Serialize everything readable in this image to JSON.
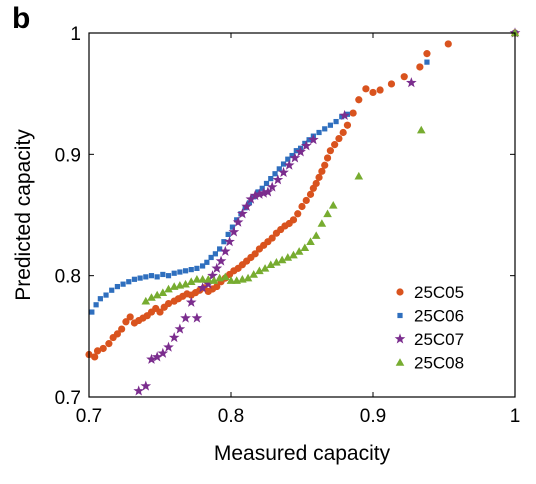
{
  "panel_label": "b",
  "chart_data": {
    "type": "scatter",
    "xlabel": "Measured capacity",
    "ylabel": "Predicted capacity",
    "xlim": [
      0.7,
      1.0
    ],
    "ylim": [
      0.7,
      1.0
    ],
    "x_ticks": [
      "0.7",
      "0.8",
      "0.9",
      "1"
    ],
    "y_ticks": [
      "0.7",
      "0.8",
      "0.9",
      "1"
    ],
    "grid": false,
    "legend_position": "bottom-right",
    "series": [
      {
        "name": "25C05",
        "color": "#d9531e",
        "marker": "circle",
        "points": [
          [
            0.7,
            0.735
          ],
          [
            0.704,
            0.733
          ],
          [
            0.706,
            0.738
          ],
          [
            0.71,
            0.74
          ],
          [
            0.714,
            0.744
          ],
          [
            0.717,
            0.749
          ],
          [
            0.72,
            0.752
          ],
          [
            0.723,
            0.756
          ],
          [
            0.726,
            0.762
          ],
          [
            0.729,
            0.766
          ],
          [
            0.732,
            0.761
          ],
          [
            0.735,
            0.763
          ],
          [
            0.738,
            0.765
          ],
          [
            0.741,
            0.767
          ],
          [
            0.744,
            0.77
          ],
          [
            0.747,
            0.773
          ],
          [
            0.75,
            0.77
          ],
          [
            0.753,
            0.774
          ],
          [
            0.756,
            0.777
          ],
          [
            0.76,
            0.779
          ],
          [
            0.763,
            0.781
          ],
          [
            0.766,
            0.783
          ],
          [
            0.769,
            0.785
          ],
          [
            0.772,
            0.784
          ],
          [
            0.775,
            0.786
          ],
          [
            0.778,
            0.788
          ],
          [
            0.781,
            0.79
          ],
          [
            0.784,
            0.787
          ],
          [
            0.787,
            0.789
          ],
          [
            0.79,
            0.791
          ],
          [
            0.793,
            0.795
          ],
          [
            0.796,
            0.798
          ],
          [
            0.799,
            0.801
          ],
          [
            0.802,
            0.804
          ],
          [
            0.805,
            0.806
          ],
          [
            0.808,
            0.809
          ],
          [
            0.811,
            0.812
          ],
          [
            0.814,
            0.815
          ],
          [
            0.817,
            0.818
          ],
          [
            0.82,
            0.822
          ],
          [
            0.823,
            0.825
          ],
          [
            0.826,
            0.828
          ],
          [
            0.829,
            0.831
          ],
          [
            0.832,
            0.835
          ],
          [
            0.835,
            0.838
          ],
          [
            0.838,
            0.841
          ],
          [
            0.841,
            0.843
          ],
          [
            0.844,
            0.846
          ],
          [
            0.847,
            0.851
          ],
          [
            0.85,
            0.857
          ],
          [
            0.853,
            0.862
          ],
          [
            0.856,
            0.867
          ],
          [
            0.858,
            0.872
          ],
          [
            0.86,
            0.876
          ],
          [
            0.862,
            0.881
          ],
          [
            0.864,
            0.886
          ],
          [
            0.866,
            0.891
          ],
          [
            0.868,
            0.897
          ],
          [
            0.87,
            0.903
          ],
          [
            0.873,
            0.908
          ],
          [
            0.876,
            0.913
          ],
          [
            0.879,
            0.918
          ],
          [
            0.882,
            0.924
          ],
          [
            0.886,
            0.934
          ],
          [
            0.89,
            0.945
          ],
          [
            0.895,
            0.954
          ],
          [
            0.9,
            0.951
          ],
          [
            0.905,
            0.953
          ],
          [
            0.913,
            0.958
          ],
          [
            0.922,
            0.964
          ],
          [
            0.933,
            0.972
          ],
          [
            0.938,
            0.983
          ],
          [
            0.953,
            0.991
          ],
          [
            1.0,
            1.0
          ]
        ]
      },
      {
        "name": "25C06",
        "color": "#2f6fbe",
        "marker": "square",
        "points": [
          [
            0.702,
            0.77
          ],
          [
            0.705,
            0.776
          ],
          [
            0.708,
            0.781
          ],
          [
            0.712,
            0.784
          ],
          [
            0.716,
            0.788
          ],
          [
            0.72,
            0.791
          ],
          [
            0.724,
            0.793
          ],
          [
            0.728,
            0.795
          ],
          [
            0.732,
            0.797
          ],
          [
            0.736,
            0.798
          ],
          [
            0.74,
            0.799
          ],
          [
            0.744,
            0.8
          ],
          [
            0.748,
            0.799
          ],
          [
            0.752,
            0.801
          ],
          [
            0.756,
            0.8
          ],
          [
            0.76,
            0.802
          ],
          [
            0.764,
            0.803
          ],
          [
            0.768,
            0.804
          ],
          [
            0.772,
            0.805
          ],
          [
            0.776,
            0.806
          ],
          [
            0.78,
            0.808
          ],
          [
            0.783,
            0.811
          ],
          [
            0.786,
            0.815
          ],
          [
            0.789,
            0.818
          ],
          [
            0.792,
            0.822
          ],
          [
            0.795,
            0.828
          ],
          [
            0.798,
            0.834
          ],
          [
            0.801,
            0.84
          ],
          [
            0.804,
            0.846
          ],
          [
            0.807,
            0.851
          ],
          [
            0.81,
            0.856
          ],
          [
            0.813,
            0.86
          ],
          [
            0.816,
            0.865
          ],
          [
            0.819,
            0.869
          ],
          [
            0.822,
            0.872
          ],
          [
            0.825,
            0.876
          ],
          [
            0.828,
            0.88
          ],
          [
            0.831,
            0.884
          ],
          [
            0.834,
            0.888
          ],
          [
            0.837,
            0.892
          ],
          [
            0.84,
            0.896
          ],
          [
            0.843,
            0.899
          ],
          [
            0.846,
            0.903
          ],
          [
            0.849,
            0.905
          ],
          [
            0.852,
            0.909
          ],
          [
            0.855,
            0.912
          ],
          [
            0.858,
            0.915
          ],
          [
            0.862,
            0.918
          ],
          [
            0.866,
            0.921
          ],
          [
            0.87,
            0.924
          ],
          [
            0.874,
            0.927
          ],
          [
            0.878,
            0.931
          ],
          [
            0.882,
            0.933
          ],
          [
            0.938,
            0.976
          ],
          [
            1.0,
            1.0
          ]
        ]
      },
      {
        "name": "25C07",
        "color": "#7b2d8e",
        "marker": "star",
        "points": [
          [
            0.735,
            0.705
          ],
          [
            0.74,
            0.709
          ],
          [
            0.744,
            0.731
          ],
          [
            0.748,
            0.733
          ],
          [
            0.752,
            0.736
          ],
          [
            0.756,
            0.741
          ],
          [
            0.76,
            0.749
          ],
          [
            0.764,
            0.756
          ],
          [
            0.768,
            0.765
          ],
          [
            0.772,
            0.778
          ],
          [
            0.776,
            0.765
          ],
          [
            0.78,
            0.79
          ],
          [
            0.784,
            0.793
          ],
          [
            0.787,
            0.8
          ],
          [
            0.79,
            0.806
          ],
          [
            0.793,
            0.812
          ],
          [
            0.796,
            0.82
          ],
          [
            0.799,
            0.828
          ],
          [
            0.802,
            0.836
          ],
          [
            0.805,
            0.844
          ],
          [
            0.808,
            0.851
          ],
          [
            0.811,
            0.857
          ],
          [
            0.814,
            0.863
          ],
          [
            0.817,
            0.866
          ],
          [
            0.82,
            0.867
          ],
          [
            0.823,
            0.868
          ],
          [
            0.826,
            0.869
          ],
          [
            0.829,
            0.873
          ],
          [
            0.833,
            0.879
          ],
          [
            0.837,
            0.885
          ],
          [
            0.841,
            0.891
          ],
          [
            0.845,
            0.897
          ],
          [
            0.849,
            0.902
          ],
          [
            0.853,
            0.907
          ],
          [
            0.858,
            0.912
          ],
          [
            0.88,
            0.932
          ],
          [
            0.927,
            0.959
          ],
          [
            1.0,
            1.0
          ]
        ]
      },
      {
        "name": "25C08",
        "color": "#77ac30",
        "marker": "triangle",
        "points": [
          [
            0.74,
            0.779
          ],
          [
            0.744,
            0.782
          ],
          [
            0.748,
            0.784
          ],
          [
            0.752,
            0.786
          ],
          [
            0.756,
            0.789
          ],
          [
            0.76,
            0.791
          ],
          [
            0.764,
            0.792
          ],
          [
            0.768,
            0.793
          ],
          [
            0.772,
            0.795
          ],
          [
            0.776,
            0.797
          ],
          [
            0.78,
            0.797
          ],
          [
            0.784,
            0.797
          ],
          [
            0.788,
            0.796
          ],
          [
            0.792,
            0.798
          ],
          [
            0.796,
            0.799
          ],
          [
            0.8,
            0.796
          ],
          [
            0.804,
            0.796
          ],
          [
            0.808,
            0.797
          ],
          [
            0.812,
            0.798
          ],
          [
            0.816,
            0.801
          ],
          [
            0.82,
            0.804
          ],
          [
            0.824,
            0.806
          ],
          [
            0.828,
            0.809
          ],
          [
            0.832,
            0.811
          ],
          [
            0.836,
            0.813
          ],
          [
            0.84,
            0.815
          ],
          [
            0.844,
            0.817
          ],
          [
            0.848,
            0.82
          ],
          [
            0.852,
            0.823
          ],
          [
            0.856,
            0.828
          ],
          [
            0.86,
            0.833
          ],
          [
            0.864,
            0.843
          ],
          [
            0.868,
            0.851
          ],
          [
            0.872,
            0.858
          ],
          [
            0.89,
            0.882
          ],
          [
            0.934,
            0.92
          ],
          [
            1.0,
            1.0
          ]
        ]
      }
    ]
  }
}
